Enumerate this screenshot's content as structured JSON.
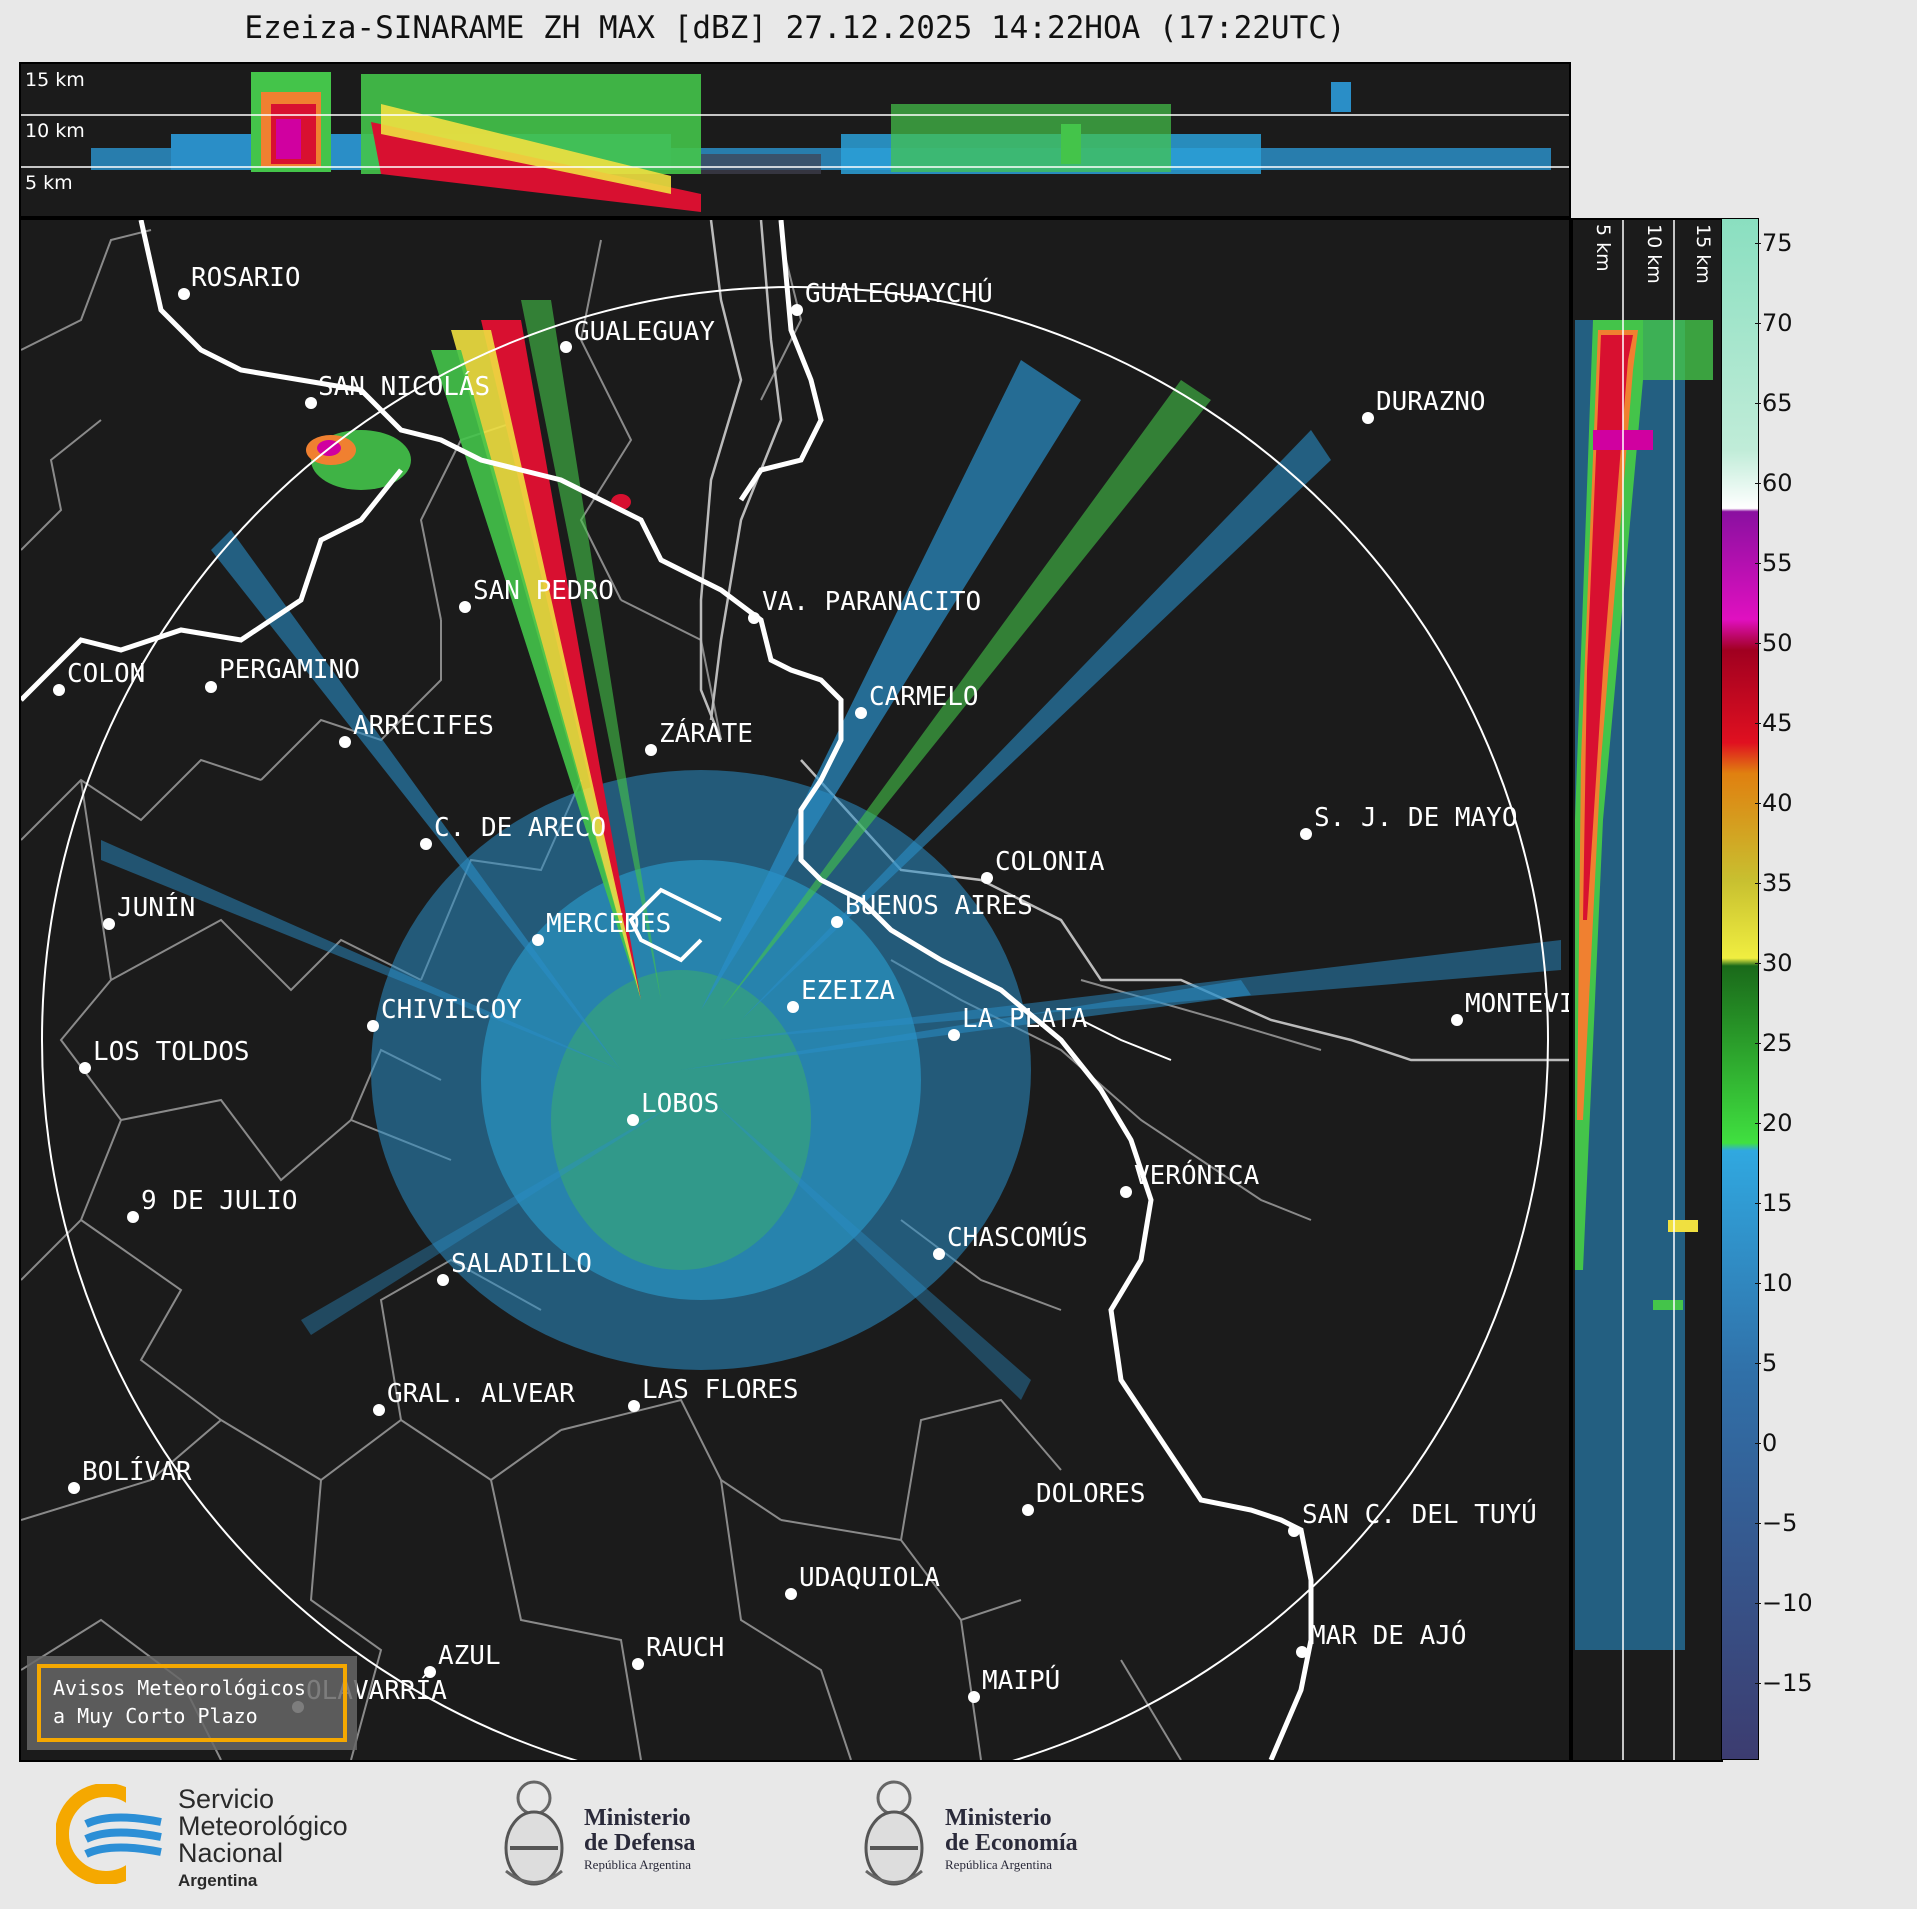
{
  "title": "Ezeiza-SINARAME ZH MAX [dBZ] 27.12.2025 14:22HOA (17:22UTC)",
  "top_panel": {
    "heights": [
      "15 km",
      "10 km",
      "5 km"
    ]
  },
  "side_panel": {
    "heights": [
      "5 km",
      "10 km",
      "15 km"
    ]
  },
  "colorbar": {
    "unit": "dBZ",
    "ticks": [
      "75",
      "70",
      "65",
      "60",
      "55",
      "50",
      "45",
      "40",
      "35",
      "30",
      "25",
      "20",
      "15",
      "10",
      "5",
      "0",
      "−5",
      "−10",
      "−15"
    ]
  },
  "cities": [
    "ROSARIO",
    "GUALEGUAYCHÚ",
    "GUALEGUAY",
    "SAN NICOLÁS",
    "DURAZNO",
    "SAN PEDRO",
    "VA. PARANACITO",
    "COLON",
    "PERGAMINO",
    "CARMELO",
    "ARRECIFES",
    "ZÁRATE",
    "S. J. DE MAYO",
    "C. DE ARECO",
    "COLONIA",
    "JUNÍN",
    "BUENOS AIRES",
    "MERCEDES",
    "EZEIZA",
    "MONTEVIDEO",
    "CHIVILCOY",
    "LA PLATA",
    "LOS TOLDOS",
    "LOBOS",
    "VERÓNICA",
    "9 DE JULIO",
    "CHASCOMÚS",
    "SALADILLO",
    "GRAL. ALVEAR",
    "LAS FLORES",
    "BOLÍVAR",
    "DOLORES",
    "SAN C. DEL TUYÚ",
    "UDAQUIOLA",
    "MAR DE AJÓ",
    "AZUL",
    "RAUCH",
    "MAIPÚ",
    "OLAVARRÍA"
  ],
  "warning_box": {
    "line1": "Avisos Meteorológicos",
    "line2": "a Muy Corto Plazo"
  },
  "logos": {
    "smn": {
      "line1": "Servicio",
      "line2": "Meteorológico",
      "line3": "Nacional",
      "line4": "Argentina"
    },
    "defensa": {
      "line1": "Ministerio",
      "line2": "de Defensa",
      "line3": "República Argentina"
    },
    "economia": {
      "line1": "Ministerio",
      "line2": "de Economía",
      "line3": "República Argentina"
    }
  },
  "colors": {
    "background": "#1b1b1b",
    "coast": "#ffffff",
    "accent_orange": "#f5a800",
    "smn_blue": "#2c8fd6"
  }
}
